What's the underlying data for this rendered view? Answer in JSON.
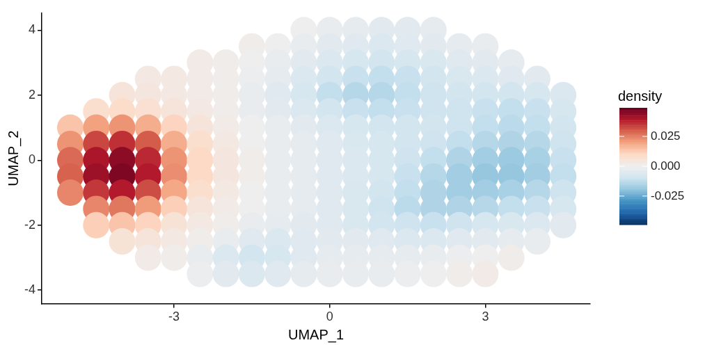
{
  "chart_data": {
    "type": "scatter",
    "xlabel": "UMAP_1",
    "ylabel": "UMAP_2",
    "clabel": "density",
    "marker": "circle",
    "grid": false,
    "legend": false,
    "xlim": [
      -5.55,
      5.02
    ],
    "ylim": [
      -4.41,
      4.52
    ],
    "xticks": [
      -3,
      0,
      3
    ],
    "yticks": [
      -4,
      -2,
      0,
      2,
      4
    ],
    "clim": [
      -0.049,
      0.049
    ],
    "cticks": [
      {
        "value": 0.025,
        "label": "0.025"
      },
      {
        "value": 0,
        "label": "0.000"
      },
      {
        "value": -0.025,
        "label": "-0.025"
      }
    ],
    "x": [
      -0.5,
      0,
      0.5,
      1,
      1.5,
      2,
      -1.5,
      -1,
      -0.5,
      0,
      0.5,
      1,
      1.5,
      2,
      2.5,
      3,
      -2.5,
      -2,
      -1.5,
      -1,
      -0.5,
      0,
      0.5,
      1,
      1.5,
      2,
      2.5,
      3,
      3.5,
      -3.5,
      -3,
      -2.5,
      -2,
      -1.5,
      -1,
      -0.5,
      0,
      0.5,
      1,
      1.5,
      2,
      2.5,
      3,
      3.5,
      4,
      -4,
      -3.5,
      -3,
      -2.5,
      -2,
      -1.5,
      -1,
      -0.5,
      0,
      0.5,
      1,
      1.5,
      2,
      2.5,
      3,
      3.5,
      4,
      4.5,
      -4.5,
      -4,
      -3.5,
      -3,
      -2.5,
      -2,
      -1.5,
      -1,
      -0.5,
      0,
      0.5,
      1,
      1.5,
      2,
      2.5,
      3,
      3.5,
      4,
      4.5,
      -5,
      -4.5,
      -4,
      -3.5,
      -3,
      -2.5,
      -2,
      -1.5,
      -1,
      -0.5,
      0,
      0.5,
      1,
      1.5,
      2,
      2.5,
      3,
      3.5,
      4,
      4.5,
      -5,
      -4.5,
      -4,
      -3.5,
      -3,
      -2.5,
      -2,
      -1.5,
      -1,
      -0.5,
      0,
      0.5,
      1,
      1.5,
      2,
      2.5,
      3,
      3.5,
      4,
      4.5,
      -5,
      -4.5,
      -4,
      -3.5,
      -3,
      -2.5,
      -2,
      -1.5,
      -1,
      -0.5,
      0,
      0.5,
      1,
      1.5,
      2,
      2.5,
      3,
      3.5,
      4,
      4.5,
      -5,
      -4.5,
      -4,
      -3.5,
      -3,
      -2.5,
      -2,
      -1.5,
      -1,
      -0.5,
      0,
      0.5,
      1,
      1.5,
      2,
      2.5,
      3,
      3.5,
      4,
      4.5,
      -5,
      -4.5,
      -4,
      -3.5,
      -3,
      -2.5,
      -2,
      -1.5,
      -1,
      -0.5,
      0,
      0.5,
      1,
      1.5,
      2,
      2.5,
      3,
      3.5,
      4,
      4.5,
      -4.5,
      -4,
      -3.5,
      -3,
      -2.5,
      -2,
      -1.5,
      -1,
      -0.5,
      0,
      0.5,
      1,
      1.5,
      2,
      2.5,
      3,
      3.5,
      4,
      4.5,
      -4.5,
      -4,
      -3.5,
      -3,
      -2.5,
      -2,
      -1.5,
      -1,
      -0.5,
      0,
      0.5,
      1,
      1.5,
      2,
      2.5,
      3,
      3.5,
      4,
      4.5,
      -4,
      -3.5,
      -3,
      -2.5,
      -2,
      -1.5,
      -1,
      -0.5,
      0,
      0.5,
      1,
      1.5,
      2,
      2.5,
      3,
      3.5,
      4,
      -3.5,
      -3,
      -2.5,
      -2,
      -1.5,
      -1,
      -0.5,
      0,
      0.5,
      1,
      1.5,
      2,
      2.5,
      3,
      3.5,
      -2.5,
      -2,
      -1.5,
      -1,
      -0.5,
      0,
      0.5,
      1,
      1.5,
      2,
      2.5,
      3
    ],
    "values": [
      4,
      4,
      4,
      4,
      4,
      4,
      3.5,
      3.5,
      3.5,
      3.5,
      3.5,
      3.5,
      3.5,
      3.5,
      3.5,
      3.5,
      3,
      3,
      3,
      3,
      3,
      3,
      3,
      3,
      3,
      3,
      3,
      3,
      3,
      2.5,
      2.5,
      2.5,
      2.5,
      2.5,
      2.5,
      2.5,
      2.5,
      2.5,
      2.5,
      2.5,
      2.5,
      2.5,
      2.5,
      2.5,
      2.5,
      2,
      2,
      2,
      2,
      2,
      2,
      2,
      2,
      2,
      2,
      2,
      2,
      2,
      2,
      2,
      2,
      2,
      2,
      1.5,
      1.5,
      1.5,
      1.5,
      1.5,
      1.5,
      1.5,
      1.5,
      1.5,
      1.5,
      1.5,
      1.5,
      1.5,
      1.5,
      1.5,
      1.5,
      1.5,
      1.5,
      1.5,
      1,
      1,
      1,
      1,
      1,
      1,
      1,
      1,
      1,
      1,
      1,
      1,
      1,
      1,
      1,
      1,
      1,
      1,
      1,
      1,
      0.5,
      0.5,
      0.5,
      0.5,
      0.5,
      0.5,
      0.5,
      0.5,
      0.5,
      0.5,
      0.5,
      0.5,
      0.5,
      0.5,
      0.5,
      0.5,
      0.5,
      0.5,
      0.5,
      0.5,
      0,
      0,
      0,
      0,
      0,
      0,
      0,
      0,
      0,
      0,
      0,
      0,
      0,
      0,
      0,
      0,
      0,
      0,
      0,
      0,
      -0.5,
      -0.5,
      -0.5,
      -0.5,
      -0.5,
      -0.5,
      -0.5,
      -0.5,
      -0.5,
      -0.5,
      -0.5,
      -0.5,
      -0.5,
      -0.5,
      -0.5,
      -0.5,
      -0.5,
      -0.5,
      -0.5,
      -0.5,
      -1,
      -1,
      -1,
      -1,
      -1,
      -1,
      -1,
      -1,
      -1,
      -1,
      -1,
      -1,
      -1,
      -1,
      -1,
      -1,
      -1,
      -1,
      -1,
      -1,
      -1.5,
      -1.5,
      -1.5,
      -1.5,
      -1.5,
      -1.5,
      -1.5,
      -1.5,
      -1.5,
      -1.5,
      -1.5,
      -1.5,
      -1.5,
      -1.5,
      -1.5,
      -1.5,
      -1.5,
      -1.5,
      -1.5,
      -2,
      -2,
      -2,
      -2,
      -2,
      -2,
      -2,
      -2,
      -2,
      -2,
      -2,
      -2,
      -2,
      -2,
      -2,
      -2,
      -2,
      -2,
      -2,
      -2.5,
      -2.5,
      -2.5,
      -2.5,
      -2.5,
      -2.5,
      -2.5,
      -2.5,
      -2.5,
      -2.5,
      -2.5,
      -2.5,
      -2.5,
      -2.5,
      -2.5,
      -2.5,
      -2.5,
      -3,
      -3,
      -3,
      -3,
      -3,
      -3,
      -3,
      -3,
      -3,
      -3,
      -3,
      -3,
      -3,
      -3,
      -3,
      -3.5,
      -3.5,
      -3.5,
      -3.5,
      -3.5,
      -3.5,
      -3.5,
      -3.5,
      -3.5,
      -3.5,
      -3.5,
      -3.5
    ],
    "cvalues": [
      0,
      -0.002,
      -0.003,
      -0.004,
      -0.004,
      -0.003,
      0.001,
      0,
      -0.002,
      -0.004,
      -0.005,
      -0.006,
      -0.005,
      -0.004,
      -0.003,
      -0.002,
      0.002,
      0.001,
      0,
      -0.002,
      -0.004,
      -0.006,
      -0.008,
      -0.009,
      -0.008,
      -0.007,
      -0.005,
      -0.004,
      -0.003,
      0.003,
      0.003,
      0.002,
      0.001,
      -0.001,
      -0.003,
      -0.006,
      -0.009,
      -0.011,
      -0.012,
      -0.011,
      -0.009,
      -0.007,
      -0.006,
      -0.005,
      -0.004,
      0.005,
      0.004,
      0.003,
      0.002,
      0.001,
      -0.002,
      -0.005,
      -0.008,
      -0.012,
      -0.014,
      -0.014,
      -0.012,
      -0.01,
      -0.009,
      -0.009,
      -0.009,
      -0.008,
      -0.006,
      0.008,
      0.009,
      0.007,
      0.005,
      0.003,
      0.001,
      -0.002,
      -0.004,
      -0.006,
      -0.009,
      -0.011,
      -0.012,
      -0.011,
      -0.01,
      -0.01,
      -0.011,
      -0.012,
      -0.011,
      -0.008,
      0.014,
      0.02,
      0.022,
      0.018,
      0.011,
      0.005,
      0.002,
      0,
      -0.002,
      -0.004,
      -0.006,
      -0.008,
      -0.009,
      -0.009,
      -0.009,
      -0.01,
      -0.012,
      -0.013,
      -0.012,
      -0.009,
      0.022,
      0.033,
      0.036,
      0.03,
      0.018,
      0.008,
      0.003,
      0,
      -0.002,
      -0.003,
      -0.005,
      -0.007,
      -0.008,
      -0.009,
      -0.01,
      -0.012,
      -0.014,
      -0.015,
      -0.014,
      -0.01,
      0.028,
      0.04,
      0.044,
      0.037,
      0.022,
      0.01,
      0.004,
      0.001,
      -0.002,
      -0.003,
      -0.005,
      -0.006,
      -0.008,
      -0.01,
      -0.012,
      -0.015,
      -0.017,
      -0.018,
      -0.016,
      -0.011,
      0.029,
      0.042,
      0.046,
      0.039,
      0.023,
      0.01,
      0.004,
      0.001,
      -0.002,
      -0.003,
      -0.005,
      -0.006,
      -0.008,
      -0.011,
      -0.014,
      -0.017,
      -0.019,
      -0.019,
      -0.017,
      -0.012,
      0.024,
      0.035,
      0.039,
      0.032,
      0.019,
      0.008,
      0.003,
      0,
      -0.002,
      -0.003,
      -0.005,
      -0.007,
      -0.009,
      -0.012,
      -0.015,
      -0.017,
      -0.017,
      -0.016,
      -0.014,
      -0.01,
      0.024,
      0.026,
      0.021,
      0.012,
      0.005,
      0.002,
      0,
      -0.002,
      -0.003,
      -0.005,
      -0.007,
      -0.01,
      -0.013,
      -0.015,
      -0.015,
      -0.014,
      -0.012,
      -0.011,
      -0.008,
      0.012,
      0.014,
      0.011,
      0.006,
      0.003,
      0.001,
      -0.002,
      -0.003,
      -0.004,
      -0.005,
      -0.007,
      -0.009,
      -0.01,
      -0.011,
      -0.01,
      -0.008,
      -0.007,
      -0.006,
      -0.004,
      0.006,
      0.005,
      0.003,
      0.001,
      -0.002,
      -0.005,
      -0.006,
      -0.005,
      -0.004,
      -0.004,
      -0.005,
      -0.006,
      -0.006,
      -0.005,
      -0.004,
      -0.003,
      -0.002,
      0.002,
      0.001,
      -0.002,
      -0.006,
      -0.009,
      -0.008,
      -0.005,
      -0.003,
      -0.003,
      -0.003,
      -0.003,
      -0.002,
      -0.001,
      0,
      0.001,
      -0.001,
      -0.004,
      -0.006,
      -0.005,
      -0.003,
      -0.002,
      -0.002,
      -0.002,
      -0.001,
      0,
      0.001,
      0.002
    ]
  }
}
